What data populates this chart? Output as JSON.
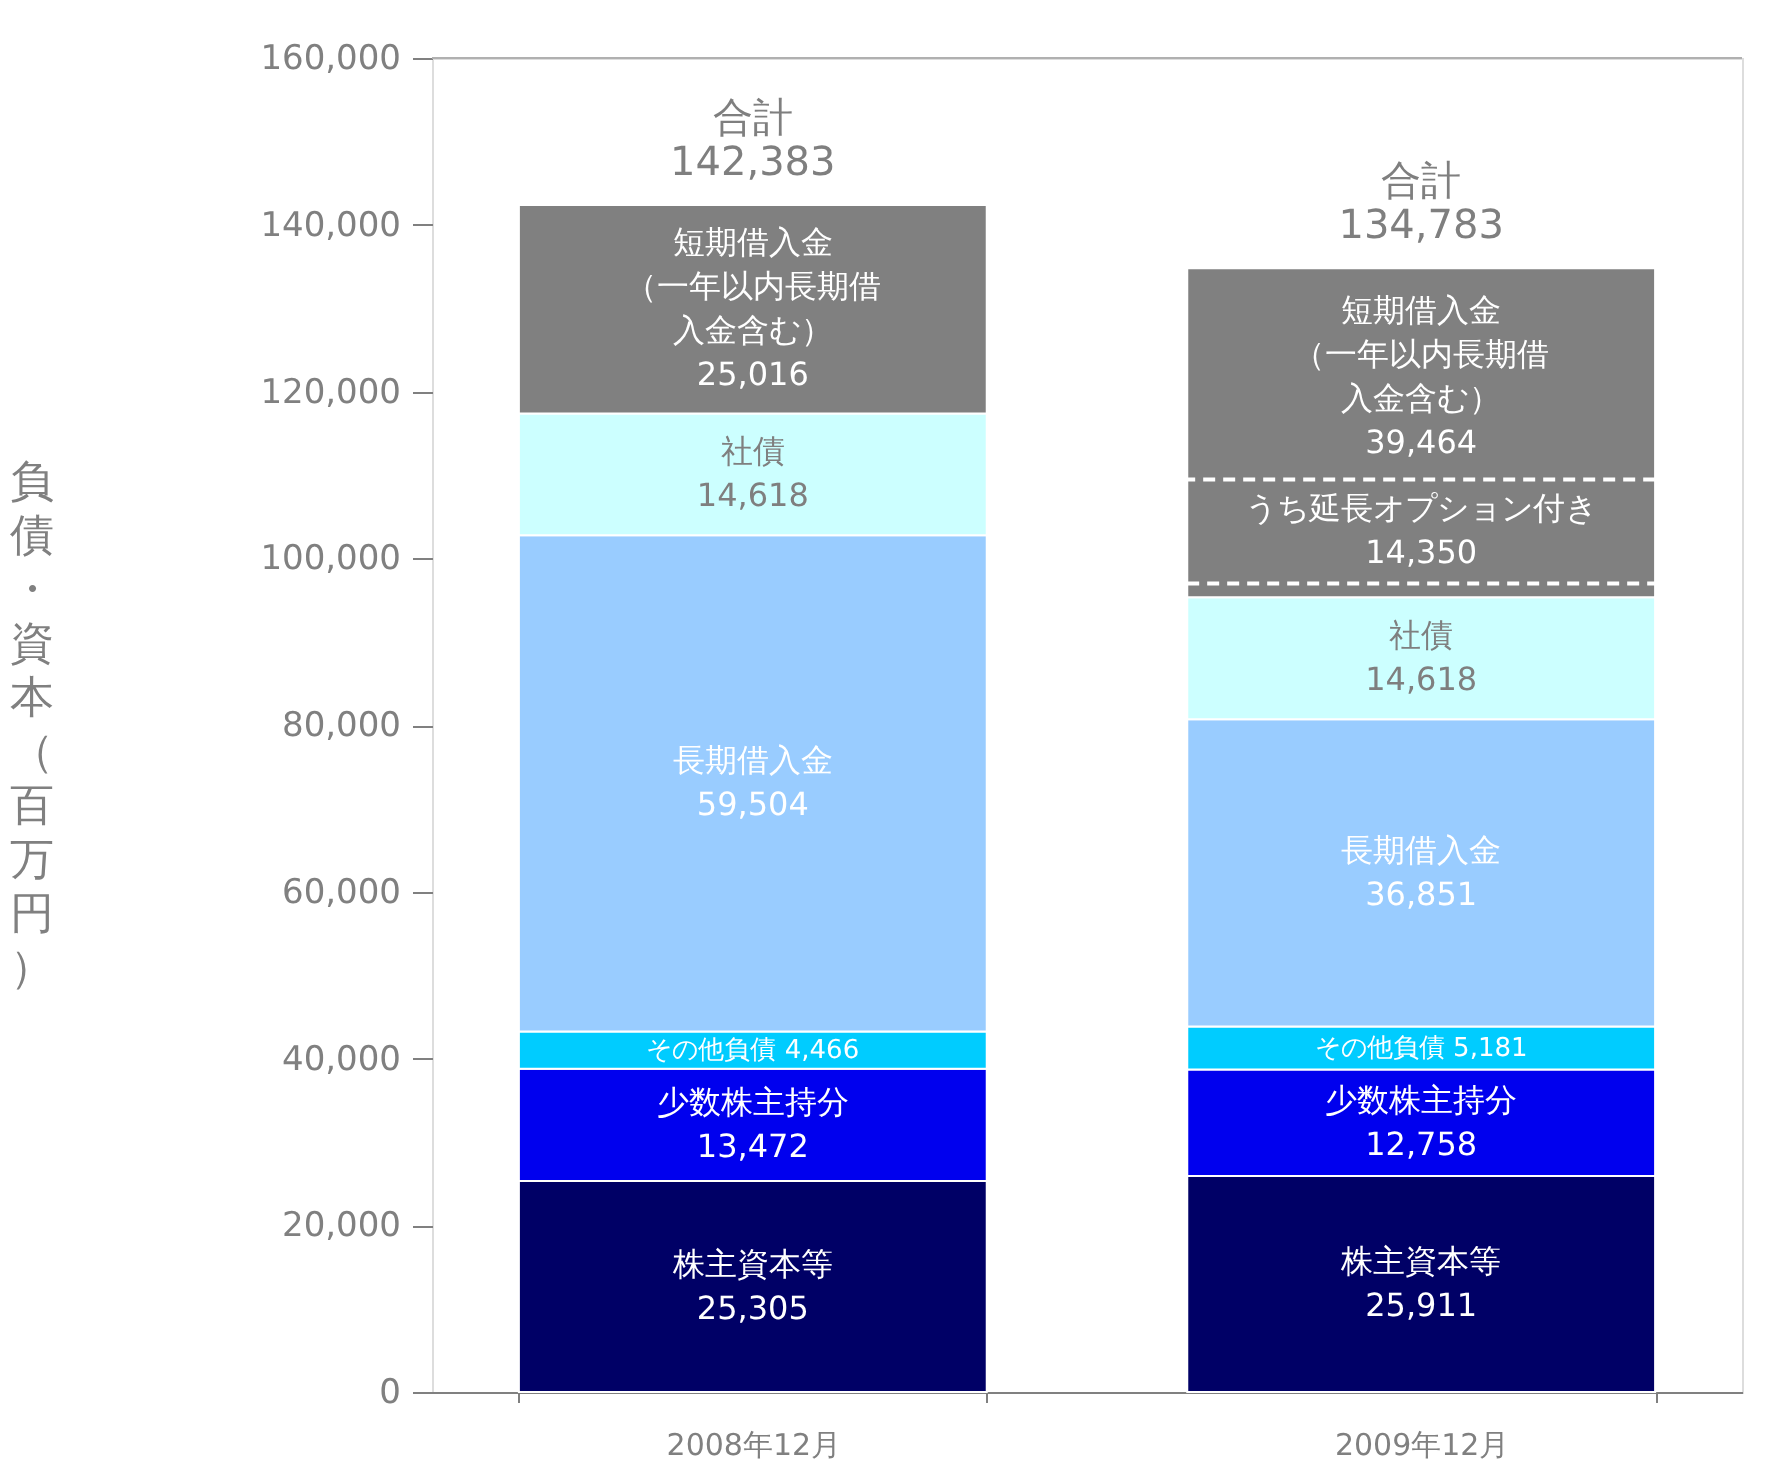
{
  "chart_data": {
    "type": "bar",
    "stacked": true,
    "ylabel": "負債・資本（百万円）",
    "categories": [
      "2008年12月",
      "2009年12月"
    ],
    "series": [
      {
        "name": "株主資本等",
        "color": "#000066",
        "values": [
          25305,
          25911
        ],
        "value_labels": [
          "25,305",
          "25,911"
        ]
      },
      {
        "name": "少数株主持分",
        "color": "#0000ee",
        "values": [
          13472,
          12758
        ],
        "value_labels": [
          "13,472",
          "12,758"
        ]
      },
      {
        "name": "その他負債",
        "color": "#00ccff",
        "values": [
          4466,
          5181
        ],
        "value_labels": [
          "4,466",
          "5,181"
        ]
      },
      {
        "name": "長期借入金",
        "color": "#99ccff",
        "values": [
          59504,
          36851
        ],
        "value_labels": [
          "59,504",
          "36,851"
        ]
      },
      {
        "name": "社債",
        "color": "#ccffff",
        "values": [
          14618,
          14618
        ],
        "value_labels": [
          "14,618",
          "14,618"
        ]
      },
      {
        "name": "短期借入金（一年以内長期借入金含む）",
        "color": "#808080",
        "values": [
          25016,
          39464
        ],
        "value_labels": [
          "25,016",
          "39,464"
        ]
      }
    ],
    "totals": [
      "合計\n142,383",
      "合計\n134,783"
    ],
    "annotations": [
      "うち延長オプション付き\n14,350"
    ],
    "ylim": [
      0,
      160000
    ],
    "yticks": [
      {
        "value": 0,
        "label": "0"
      },
      {
        "value": 20000,
        "label": "20,000"
      },
      {
        "value": 40000,
        "label": "40,000"
      },
      {
        "value": 60000,
        "label": "60,000"
      },
      {
        "value": 80000,
        "label": "80,000"
      },
      {
        "value": 100000,
        "label": "100,000"
      },
      {
        "value": 120000,
        "label": "120,000"
      },
      {
        "value": 140000,
        "label": "140,000"
      },
      {
        "value": 160000,
        "label": "160,000"
      }
    ],
    "legend": false,
    "grid": false
  }
}
